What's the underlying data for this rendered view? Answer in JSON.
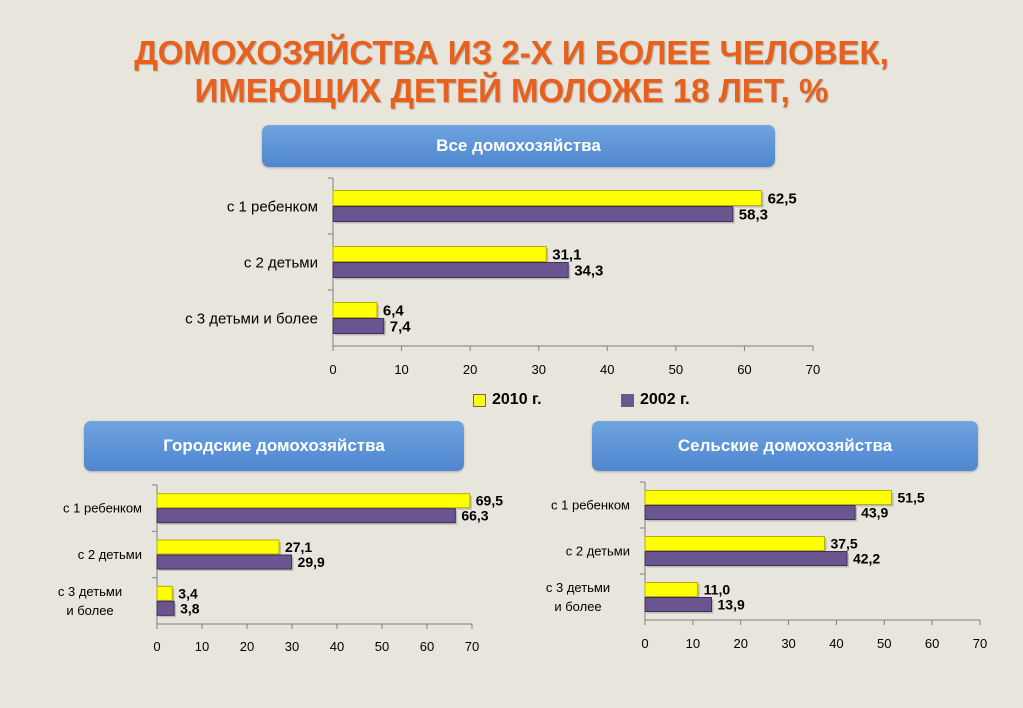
{
  "title": {
    "line1": "ДОМОХОЗЯЙСТВА ИЗ 2-Х И БОЛЕЕ ЧЕЛОВЕК,",
    "line2": "ИМЕЮЩИХ ДЕТЕЙ МОЛОЖЕ 18 ЛЕТ, %"
  },
  "colors": {
    "title": "#e8601c",
    "banner": "#5b8fd6",
    "series_2010": "#ffff00",
    "series_2002": "#6b5590"
  },
  "legend": {
    "s2010": "2010 г.",
    "s2002": "2002 г."
  },
  "chart_data": [
    {
      "type": "bar",
      "orientation": "horizontal",
      "title": "Все домохозяйства",
      "categories": [
        "с 1 ребенком",
        "с 2 детьми",
        "с 3 детьми и более"
      ],
      "series": [
        {
          "name": "2010 г.",
          "values": [
            62.5,
            31.1,
            6.4
          ],
          "labels": [
            "62,5",
            "31,1",
            "6,4"
          ]
        },
        {
          "name": "2002 г.",
          "values": [
            58.3,
            34.3,
            7.4
          ],
          "labels": [
            "58,3",
            "34,3",
            "7,4"
          ]
        }
      ],
      "xlim": [
        0,
        70
      ],
      "xticks": [
        0,
        10,
        20,
        30,
        40,
        50,
        60,
        70
      ],
      "legend_position": "bottom"
    },
    {
      "type": "bar",
      "orientation": "horizontal",
      "title": "Городские домохозяйства",
      "categories": [
        "с 1 ребенком",
        "с 2 детьми",
        "с 3 детьми и более"
      ],
      "series": [
        {
          "name": "2010 г.",
          "values": [
            69.5,
            27.1,
            3.4
          ],
          "labels": [
            "69,5",
            "27,1",
            "3,4"
          ]
        },
        {
          "name": "2002 г.",
          "values": [
            66.3,
            29.9,
            3.8
          ],
          "labels": [
            "66,3",
            "29,9",
            "3,8"
          ]
        }
      ],
      "xlim": [
        0,
        70
      ],
      "xticks": [
        0,
        10,
        20,
        30,
        40,
        50,
        60,
        70
      ]
    },
    {
      "type": "bar",
      "orientation": "horizontal",
      "title": "Сельские домохозяйства",
      "categories": [
        "с 1 ребенком",
        "с 2 детьми",
        "с 3 детьми и более"
      ],
      "series": [
        {
          "name": "2010 г.",
          "values": [
            51.5,
            37.5,
            11.0
          ],
          "labels": [
            "51,5",
            "37,5",
            "11,0"
          ]
        },
        {
          "name": "2002 г.",
          "values": [
            43.9,
            42.2,
            13.9
          ],
          "labels": [
            "43,9",
            "42,2",
            "13,9"
          ]
        }
      ],
      "xlim": [
        0,
        70
      ],
      "xticks": [
        0,
        10,
        20,
        30,
        40,
        50,
        60,
        70
      ]
    }
  ]
}
